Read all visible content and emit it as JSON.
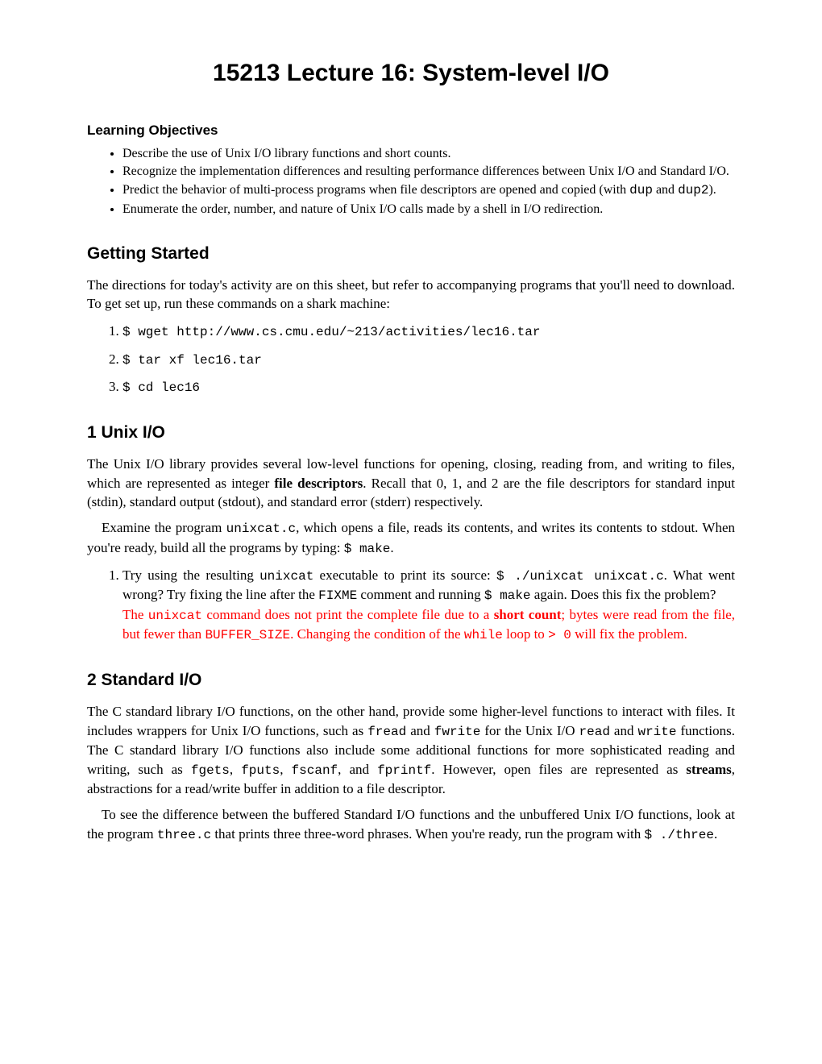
{
  "title": "15213 Lecture 16: System-level I/O",
  "objectives": {
    "heading": "Learning Objectives",
    "items": [
      {
        "pre": "Describe the use of Unix I/O library functions and short counts."
      },
      {
        "pre": "Recognize the implementation differences and resulting performance differences between Unix I/O and Standard I/O."
      },
      {
        "pre": "Predict the behavior of multi-process programs when file descriptors are opened and copied (with ",
        "code1": "dup",
        "mid": " and ",
        "code2": "dup2",
        "post": ")."
      },
      {
        "pre": "Enumerate the order, number, and nature of Unix I/O calls made by a shell in I/O redirection."
      }
    ]
  },
  "getting_started": {
    "heading": "Getting Started",
    "intro": "The directions for today's activity are on this sheet, but refer to accompanying programs that you'll need to download. To get set up, run these commands on a shark machine:",
    "steps": [
      "$ wget http://www.cs.cmu.edu/~213/activities/lec16.tar",
      "$ tar xf lec16.tar",
      "$ cd lec16"
    ]
  },
  "section1": {
    "heading": "1  Unix I/O",
    "p1a": "The Unix I/O library provides several low-level functions for opening, closing, reading from, and writing to files, which are represented as integer ",
    "p1b": "file descriptors",
    "p1c": ". Recall that 0, 1, and 2 are the file descriptors for standard input (stdin), standard output (stdout), and standard error (stderr) respectively.",
    "p2a": "Examine the program ",
    "p2code1": "unixcat.c",
    "p2b": ", which opens a file, reads its contents, and writes its contents to stdout. When you're ready, build all the programs by typing: ",
    "p2code2": "$ make",
    "p2c": ".",
    "item1": {
      "a": "Try using the resulting ",
      "code1": "unixcat",
      "b": " executable to print its source: ",
      "code2": "$ ./unixcat unixcat.c",
      "c": ". What went wrong? Try fixing the line after the ",
      "code3": "FIXME",
      "d": " comment and running ",
      "code4": "$ make",
      "e": " again. Does this fix the problem?",
      "ans_a": "The ",
      "ans_code1": "unixcat",
      "ans_b": " command does not print the complete file due to a ",
      "ans_bold": "short count",
      "ans_c": "; bytes were read from the file, but fewer than ",
      "ans_code2": "BUFFER_SIZE",
      "ans_d": ". Changing the condition of the ",
      "ans_code3": "while",
      "ans_e": " loop to ",
      "ans_code4": "> 0",
      "ans_f": " will fix the problem."
    }
  },
  "section2": {
    "heading": "2  Standard I/O",
    "p1a": "The C standard library I/O functions, on the other hand, provide some higher-level functions to interact with files. It includes wrappers for Unix I/O functions, such as ",
    "c1": "fread",
    "p1b": " and ",
    "c2": "fwrite",
    "p1c": " for the Unix I/O ",
    "c3": "read",
    "p1d": " and ",
    "c4": "write",
    "p1e": " functions. The C standard library I/O functions also include some additional functions for more sophisticated reading and writing, such as ",
    "c5": "fgets",
    "p1f": ", ",
    "c6": "fputs",
    "p1g": ", ",
    "c7": "fscanf",
    "p1h": ", and ",
    "c8": "fprintf",
    "p1i": ". However, open files are represented as ",
    "p1bold": "streams",
    "p1j": ", abstractions for a read/write buffer in addition to a file descriptor.",
    "p2a": "To see the difference between the buffered Standard I/O functions and the unbuffered Unix I/O functions, look at the program ",
    "p2c1": "three.c",
    "p2b": " that prints three three-word phrases. When you're ready, run the program with  ",
    "p2c2": "$ ./three",
    "p2c": "."
  }
}
